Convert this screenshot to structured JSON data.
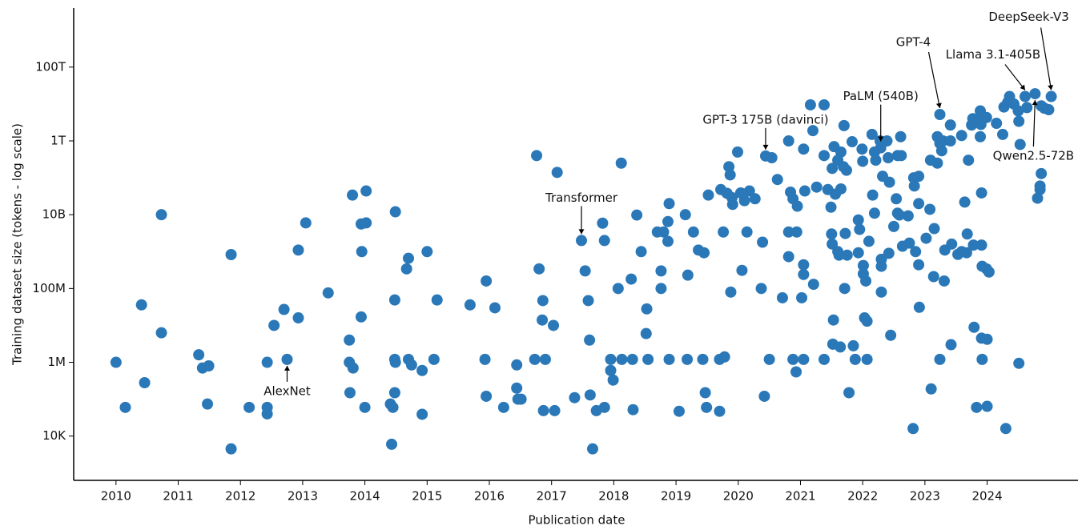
{
  "chart_data": {
    "type": "scatter",
    "xlabel": "Publication date",
    "ylabel": "Training dataset size (tokens - log scale)",
    "color": "#2a78b8",
    "log_y": true,
    "grid": false,
    "xlim": [
      2009.32,
      2025.46
    ],
    "xticks": [
      2010,
      2011,
      2012,
      2013,
      2014,
      2015,
      2016,
      2017,
      2018,
      2019,
      2020,
      2021,
      2022,
      2023,
      2024
    ],
    "ylim": [
      631,
      4000000000000000.0
    ],
    "yticks": [
      {
        "value": 10000.0,
        "label": "10K"
      },
      {
        "value": 1000000.0,
        "label": "1M"
      },
      {
        "value": 100000000.0,
        "label": "100M"
      },
      {
        "value": 10000000000.0,
        "label": "10B"
      },
      {
        "value": 1000000000000.0,
        "label": "1T"
      },
      {
        "value": 100000000000000.0,
        "label": "100T"
      }
    ],
    "x": [
      2010.0,
      2010.15,
      2010.41,
      2010.46,
      2010.73,
      2010.73,
      2011.33,
      2011.39,
      2011.49,
      2011.47,
      2011.85,
      2011.85,
      2012.14,
      2012.43,
      2012.43,
      2012.43,
      2012.54,
      2012.7,
      2012.75,
      2012.93,
      2012.93,
      2013.05,
      2013.41,
      2013.75,
      2013.75,
      2013.81,
      2013.76,
      2013.8,
      2013.94,
      2013.95,
      2013.94,
      2014.02,
      2014.02,
      2014.0,
      2014.49,
      2014.48,
      2014.48,
      2014.49,
      2014.48,
      2014.41,
      2014.45,
      2014.43,
      2014.67,
      2014.7,
      2014.7,
      2014.75,
      2014.92,
      2014.92,
      2015.0,
      2015.11,
      2015.16,
      2015.69,
      2015.95,
      2015.93,
      2015.95,
      2016.09,
      2016.23,
      2016.44,
      2016.44,
      2016.46,
      2016.51,
      2016.73,
      2016.76,
      2016.8,
      2016.85,
      2016.86,
      2016.9,
      2016.87,
      2017.03,
      2017.05,
      2017.09,
      2017.37,
      2017.48,
      2017.54,
      2017.59,
      2017.61,
      2017.62,
      2017.66,
      2017.72,
      2017.82,
      2017.85,
      2017.85,
      2017.95,
      2017.95,
      2017.99,
      2018.12,
      2018.07,
      2018.13,
      2018.28,
      2018.3,
      2018.31,
      2018.37,
      2018.44,
      2018.53,
      2018.52,
      2018.55,
      2018.7,
      2018.8,
      2018.76,
      2018.76,
      2018.87,
      2018.89,
      2018.89,
      2018.87,
      2019.05,
      2019.15,
      2019.18,
      2019.19,
      2019.28,
      2019.36,
      2019.43,
      2019.45,
      2019.47,
      2019.49,
      2019.52,
      2019.7,
      2019.7,
      2019.76,
      2019.78,
      2019.72,
      2019.82,
      2019.85,
      2019.87,
      2019.9,
      2019.91,
      2019.88,
      2019.99,
      2020.04,
      2020.1,
      2020.18,
      2020.06,
      2020.14,
      2020.27,
      2020.39,
      2020.37,
      2020.42,
      2020.44,
      2020.54,
      2020.5,
      2020.63,
      2020.71,
      2020.81,
      2020.84,
      2020.88,
      2020.81,
      2020.81,
      2020.88,
      2020.93,
      2020.94,
      2020.95,
      2021.02,
      2021.05,
      2021.05,
      2021.05,
      2021.05,
      2021.07,
      2021.16,
      2021.2,
      2021.26,
      2021.21,
      2021.38,
      2021.38,
      2021.38,
      2021.44,
      2021.49,
      2021.5,
      2021.51,
      2021.51,
      2021.54,
      2021.53,
      2021.52,
      2021.56,
      2021.6,
      2021.6,
      2021.62,
      2021.64,
      2021.65,
      2021.65,
      2021.69,
      2021.7,
      2021.74,
      2021.71,
      2021.72,
      2021.75,
      2021.78,
      2021.83,
      2021.85,
      2021.88,
      2021.93,
      2021.95,
      2021.93,
      2021.99,
      2022.0,
      2022.01,
      2022.01,
      2022.05,
      2022.03,
      2022.07,
      2022.07,
      2022.1,
      2022.15,
      2022.19,
      2022.16,
      2022.21,
      2022.19,
      2022.28,
      2022.29,
      2022.32,
      2022.3,
      2022.3,
      2022.3,
      2022.39,
      2022.41,
      2022.43,
      2022.42,
      2022.45,
      2022.5,
      2022.54,
      2022.56,
      2022.56,
      2022.59,
      2022.61,
      2022.62,
      2022.64,
      2022.73,
      2022.75,
      2022.81,
      2022.82,
      2022.83,
      2022.85,
      2022.9,
      2022.9,
      2022.91,
      2022.9,
      2023.02,
      2023.08,
      2023.09,
      2023.1,
      2023.14,
      2023.15,
      2023.2,
      2023.2,
      2023.24,
      2023.24,
      2023.27,
      2023.24,
      2023.29,
      2023.31,
      2023.32,
      2023.41,
      2023.41,
      2023.42,
      2023.43,
      2023.53,
      2023.59,
      2023.59,
      2023.67,
      2023.68,
      2023.64,
      2023.7,
      2023.75,
      2023.77,
      2023.79,
      2023.78,
      2023.83,
      2023.84,
      2023.89,
      2023.89,
      2023.9,
      2023.91,
      2023.91,
      2023.92,
      2023.91,
      2023.92,
      2023.99,
      2023.99,
      2024.0,
      2024.0,
      2024.03,
      2024.15,
      2024.25,
      2024.27,
      2024.3,
      2024.33,
      2024.36,
      2024.43,
      2024.5,
      2024.51,
      2024.53,
      2024.51,
      2024.61,
      2024.64,
      2024.77,
      2024.87,
      2024.92,
      2024.99,
      2025.03,
      2024.87,
      2024.85,
      2024.85,
      2024.81
    ],
    "values": [
      1000000.0,
      60000.0,
      36000000.0,
      280000.0,
      10000000000.0,
      6300000.0,
      1600000.0,
      700000.0,
      800000.0,
      74000.0,
      830000000.0,
      4500.0,
      60000.0,
      1000000.0,
      60000.0,
      40000.0,
      10000000.0,
      27000000.0,
      1200000.0,
      1100000000.0,
      16000000.0,
      6000000000.0,
      76000000.0,
      4000000.0,
      1000000.0,
      700000.0,
      150000.0,
      34000000000.0,
      17000000.0,
      1000000000.0,
      5600000000.0,
      6000000000.0,
      44000000000.0,
      60000.0,
      12000000000.0,
      49000000.0,
      1200000.0,
      1000000.0,
      150000.0,
      74000.0,
      60000.0,
      6000.0,
      340000000.0,
      660000000.0,
      1200000.0,
      850000.0,
      600000.0,
      39000.0,
      1000000000.0,
      1200000.0,
      49000000.0,
      36000000.0,
      160000000.0,
      1200000.0,
      120000.0,
      30000000.0,
      60000.0,
      850000.0,
      200000.0,
      100000.0,
      100000.0,
      1200000.0,
      400000000000.0,
      340000000.0,
      14000000.0,
      47000000.0,
      1200000.0,
      49000.0,
      10000000.0,
      49000.0,
      140000000000.0,
      110000.0,
      2000000000.0,
      300000000.0,
      47000000.0,
      4000000.0,
      130000.0,
      4500.0,
      49000.0,
      5900000000.0,
      2000000000.0,
      60000.0,
      1200000.0,
      600000.0,
      330000.0,
      250000000000.0,
      100000000.0,
      1200000.0,
      180000000.0,
      1200000.0,
      52000.0,
      9800000000.0,
      1000000000.0,
      28000000.0,
      6000000.0,
      1200000.0,
      3400000000.0,
      3400000000.0,
      300000000.0,
      100000000.0,
      6500000000.0,
      20000000000.0,
      1200000.0,
      1900000000.0,
      47000.0,
      10000000000.0,
      1200000.0,
      230000000.0,
      3400000000.0,
      1100000000.0,
      1200000.0,
      930000000.0,
      150000.0,
      60000.0,
      34000000000.0,
      47000.0,
      1200000.0,
      3400000000.0,
      1400000.0,
      48000000000.0,
      38000000000.0,
      200000000000.0,
      120000000000.0,
      29000000000.0,
      19000000000.0,
      80000000.0,
      500000000000.0,
      39000000000.0,
      24000000000.0,
      44000000000.0,
      310000000.0,
      3400000000.0,
      27000000000.0,
      1800000000.0,
      100000000.0,
      120000.0,
      390000000000.0,
      350000000000.0,
      1200000.0,
      90000000000.0,
      56000000.0,
      1000000000000.0,
      41000000000.0,
      27000000000.0,
      3400000000.0,
      730000000.0,
      1200000.0,
      550000.0,
      3400000000.0,
      17000000000.0,
      56000000.0,
      600000000000.0,
      440000000.0,
      240000000.0,
      1200000.0,
      44000000000.0,
      9500000000000.0,
      1900000000000.0,
      56000000000.0,
      130000000.0,
      9500000000000.0,
      400000000000.0,
      1200000.0,
      48000000000.0,
      16000000000.0,
      3000000000.0,
      1600000000.0,
      180000000000.0,
      700000000000.0,
      14000000.0,
      3100000.0,
      36000000000.0,
      300000000000.0,
      1000000000.0,
      800000000.0,
      2600000.0,
      500000000000.0,
      50000000000.0,
      200000000000.0,
      2600000000000.0,
      160000000000.0,
      100000000.0,
      3100000000.0,
      800000000.0,
      150000.0,
      950000000000.0,
      2800000.0,
      1200000.0,
      7200000000.0,
      4000000000.0,
      930000000.0,
      600000000000.0,
      280000000000.0,
      420000000.0,
      250000000.0,
      160000000.0,
      16000000.0,
      13000000.0,
      1200000.0,
      1900000000.0,
      1500000000000.0,
      500000000000.0,
      34000000000.0,
      300000000000.0,
      11000000000.0,
      1000000000000.0,
      650000000000.0,
      110000000000.0,
      620000000.0,
      400000000.0,
      80000000.0,
      1000000000000.0,
      350000000000.0,
      76000000000.0,
      900000000.0,
      5400000.0,
      4800000000.0,
      27000000000.0,
      400000000000.0,
      11000000000.0,
      9800000000.0,
      1300000000000.0,
      400000000000.0,
      1400000000.0,
      9300000000.0,
      1700000000.0,
      16000.0,
      100000000000.0,
      60000000000.0,
      1000000000.0,
      110000000000.0,
      20000000000.0,
      31000000.0,
      440000000.0,
      2300000000.0,
      14000000000.0,
      300000000000.0,
      190000.0,
      210000000.0,
      4200000000.0,
      1300000000000.0,
      250000000000.0,
      5200000000000.0,
      860000000000.0,
      540000000000.0,
      1200000.0,
      1000000000000.0,
      160000000.0,
      1100000000.0,
      2700000000000.0,
      1000000000000.0,
      3000000.0,
      1600000000.0,
      840000000.0,
      1400000000000.0,
      1000000000.0,
      930000000.0,
      3000000000.0,
      22000000000.0,
      300000000000.0,
      2700000000000.0,
      4000000000000.0,
      8900000.0,
      1500000000.0,
      60000.0,
      3700000000000.0,
      1300000000000.0,
      6500000000000.0,
      2800000000000.0,
      39000000000.0,
      1500000000.0,
      400000000.0,
      4500000.0,
      1200000.0,
      4300000000000.0,
      340000000.0,
      4200000.0,
      64000.0,
      280000000.0,
      3000000000000.0,
      1500000000000.0,
      8300000000000.0,
      16000.0,
      11000000000000.0,
      16000000000000.0,
      10000000000000.0,
      6500000000000.0,
      3400000000000.0,
      800000000000.0,
      940000.0,
      16000000000000.0,
      8000000000000.0,
      19000000000000.0,
      8900000000000.0,
      7700000000000.0,
      7000000000000.0,
      16000000000000.0,
      130000000000.0,
      60000000000.0,
      48000000000.0,
      28000000000.0
    ],
    "annotations": [
      {
        "text": "AlexNet",
        "x": 2012.75,
        "y": 1200000.0
      },
      {
        "text": "Transformer",
        "x": 2017.48,
        "y": 2000000000.0
      },
      {
        "text": "GPT-3 175B (davinci)",
        "x": 2020.44,
        "y": 390000000000.0
      },
      {
        "text": "PaLM (540B)",
        "x": 2022.29,
        "y": 650000000000.0
      },
      {
        "text": "GPT-4",
        "x": 2023.24,
        "y": 5200000000000.0
      },
      {
        "text": "Llama 3.1-405B",
        "x": 2024.61,
        "y": 16000000000000.0
      },
      {
        "text": "Qwen2.5-72B",
        "x": 2024.77,
        "y": 19000000000000.0
      },
      {
        "text": "DeepSeek-V3",
        "x": 2025.03,
        "y": 16000000000000.0
      }
    ]
  }
}
